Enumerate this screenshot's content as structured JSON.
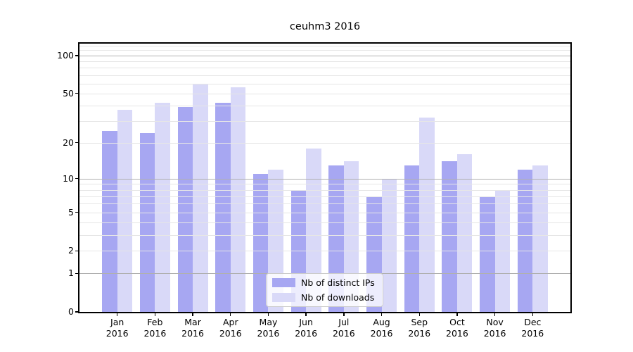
{
  "figure": {
    "title": "ceuhm3 2016"
  },
  "chart_data": {
    "type": "bar",
    "title": "ceuhm3 2016",
    "categories": [
      "Jan 2016",
      "Feb 2016",
      "Mar 2016",
      "Apr 2016",
      "May 2016",
      "Jun 2016",
      "Jul 2016",
      "Aug 2016",
      "Sep 2016",
      "Oct 2016",
      "Nov 2016",
      "Dec 2016"
    ],
    "x_tick_months": [
      "Jan",
      "Feb",
      "Mar",
      "Apr",
      "May",
      "Jun",
      "Jul",
      "Aug",
      "Sep",
      "Oct",
      "Nov",
      "Dec"
    ],
    "x_tick_year": "2016",
    "series": [
      {
        "name": "Nb of distinct IPs",
        "color": "#a7a7f2",
        "values": [
          25,
          24,
          39,
          42,
          11,
          8,
          13,
          7,
          13,
          14,
          7,
          12
        ]
      },
      {
        "name": "Nb of downloads",
        "color": "#d9d9f8",
        "values": [
          37,
          42,
          59,
          56,
          12,
          18,
          14,
          10,
          32,
          16,
          8,
          13
        ]
      }
    ],
    "yscale": "log1p",
    "ylim": [
      0,
      124
    ],
    "ytick_labels": [
      "100",
      "50",
      "20",
      "10",
      "5",
      "2",
      "1",
      "0"
    ],
    "ytick_values": [
      100,
      50,
      20,
      10,
      5,
      2,
      1,
      0
    ],
    "major_gridlines": [
      1,
      10,
      100
    ],
    "minor_gridlines": [
      2,
      3,
      4,
      5,
      6,
      7,
      8,
      9,
      20,
      30,
      40,
      50,
      60,
      70,
      80,
      90,
      110,
      120
    ],
    "grid": "both",
    "legend_position": "lower center",
    "colors": {
      "bar_ips": "#a7a7f2",
      "bar_downloads": "#d9d9f8",
      "major_grid": "#b0b0b0",
      "minor_grid": "#e6e6e6",
      "spine": "#000000",
      "background": "#ffffff",
      "text": "#000000"
    }
  }
}
